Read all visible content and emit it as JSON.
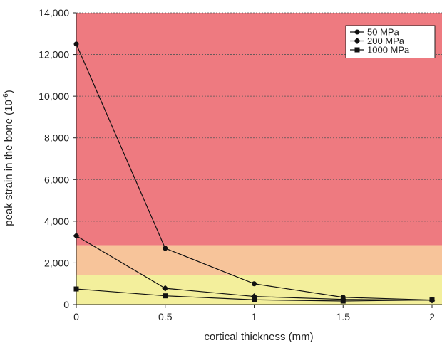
{
  "chart_data": {
    "type": "line",
    "title": "",
    "xlabel": "cortical thickness (mm)",
    "ylabel_main": "peak strain in the bone (10",
    "ylabel_sup": "-6",
    "ylabel_close": ")",
    "xlim": [
      0,
      2
    ],
    "ylim": [
      0,
      14000
    ],
    "x_ticks": [
      {
        "value": 0,
        "label": "0"
      },
      {
        "value": 0.5,
        "label": "0.5"
      },
      {
        "value": 1,
        "label": "1"
      },
      {
        "value": 1.5,
        "label": "1.5"
      },
      {
        "value": 2,
        "label": "2"
      }
    ],
    "y_ticks": [
      {
        "value": 0,
        "label": "0"
      },
      {
        "value": 2000,
        "label": "2,000"
      },
      {
        "value": 4000,
        "label": "4,000"
      },
      {
        "value": 6000,
        "label": "6,000"
      },
      {
        "value": 8000,
        "label": "8,000"
      },
      {
        "value": 10000,
        "label": "10,000"
      },
      {
        "value": 12000,
        "label": "12,000"
      },
      {
        "value": 14000,
        "label": "14,000"
      }
    ],
    "grid": "horizontal-dotted",
    "legend_position": "top-right",
    "bands": [
      {
        "from": 0,
        "to": 1400,
        "color": "#f3ef9c"
      },
      {
        "from": 1400,
        "to": 2850,
        "color": "#f7c49a"
      },
      {
        "from": 2850,
        "to": 14000,
        "color": "#ee7a80"
      }
    ],
    "series": [
      {
        "name": "50 MPa",
        "marker": "circle",
        "x": [
          0,
          0.5,
          1,
          1.5,
          2
        ],
        "values": [
          12500,
          2700,
          1000,
          350,
          220
        ]
      },
      {
        "name": "200 MPa",
        "marker": "diamond",
        "x": [
          0,
          0.5,
          1,
          1.5,
          2
        ],
        "values": [
          3300,
          780,
          390,
          250,
          210
        ]
      },
      {
        "name": "1000 MPa",
        "marker": "square",
        "x": [
          0,
          0.5,
          1,
          1.5,
          2
        ],
        "values": [
          750,
          420,
          230,
          170,
          220
        ]
      }
    ]
  }
}
